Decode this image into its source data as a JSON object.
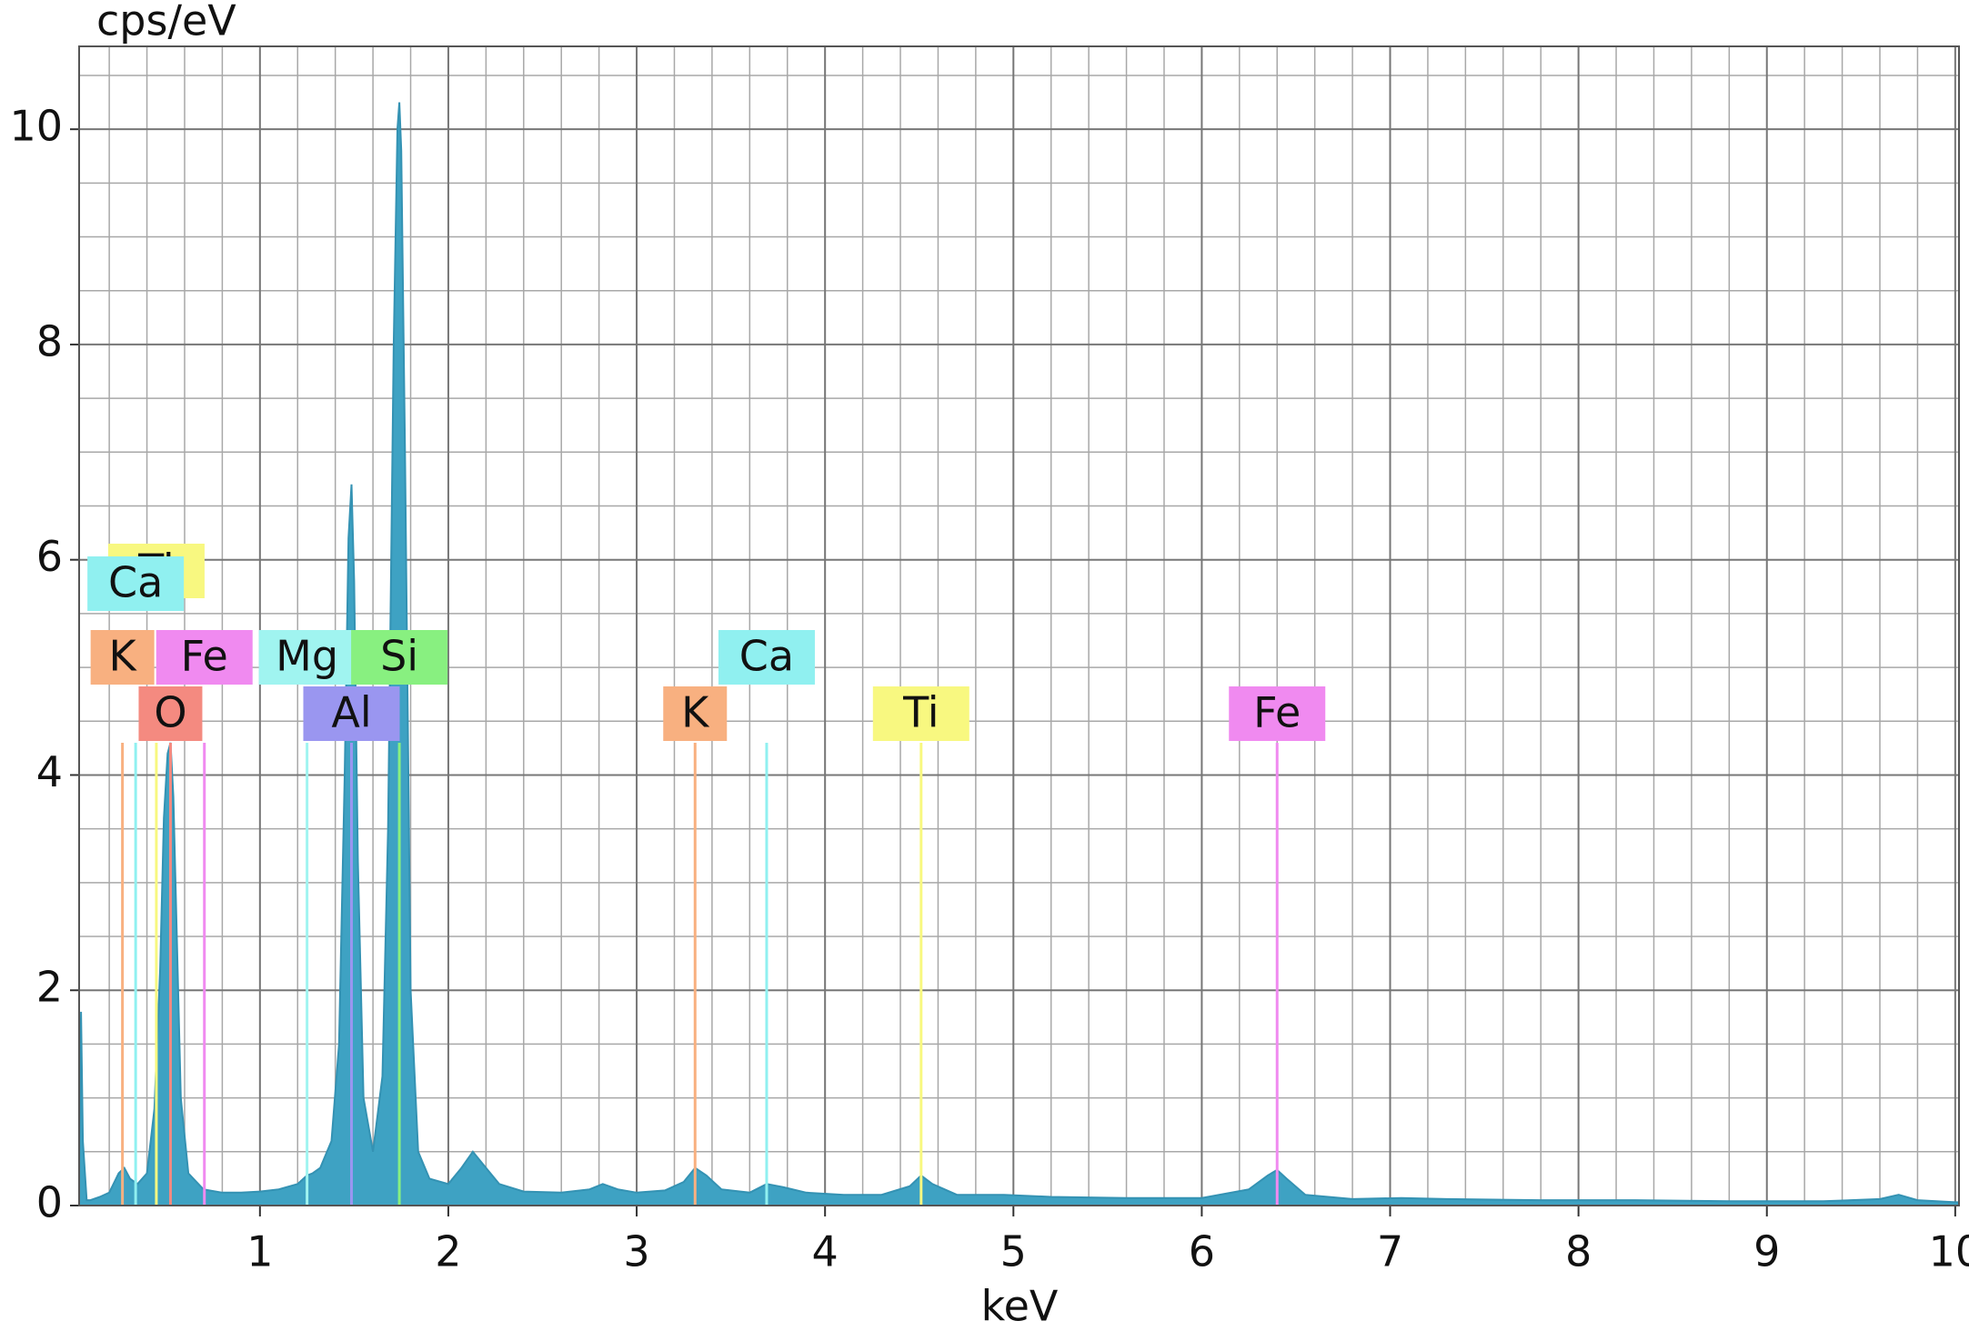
{
  "chart_data": {
    "type": "spectrum",
    "y_label": "cps/eV",
    "x_label": "keV",
    "xlim": [
      0.04,
      10.02
    ],
    "ylim": [
      0,
      10.77
    ],
    "xticks": [
      1,
      2,
      3,
      4,
      5,
      6,
      7,
      8,
      9,
      10
    ],
    "yticks": [
      0,
      2,
      4,
      6,
      8,
      10
    ],
    "grid": true,
    "x_minor_step": 0.2,
    "y_minor_step": 0.5,
    "color": "#3ea2c3",
    "x": [
      0.04,
      0.05,
      0.06,
      0.08,
      0.1,
      0.15,
      0.2,
      0.25,
      0.28,
      0.31,
      0.35,
      0.4,
      0.44,
      0.47,
      0.49,
      0.51,
      0.525,
      0.54,
      0.56,
      0.58,
      0.62,
      0.7,
      0.8,
      0.9,
      1.0,
      1.1,
      1.2,
      1.25,
      1.28,
      1.32,
      1.38,
      1.42,
      1.45,
      1.47,
      1.486,
      1.5,
      1.52,
      1.55,
      1.6,
      1.65,
      1.68,
      1.71,
      1.73,
      1.74,
      1.75,
      1.77,
      1.8,
      1.84,
      1.9,
      2.0,
      2.07,
      2.13,
      2.2,
      2.27,
      2.4,
      2.6,
      2.75,
      2.82,
      2.9,
      3.0,
      3.15,
      3.25,
      3.31,
      3.37,
      3.45,
      3.6,
      3.69,
      3.78,
      3.9,
      4.1,
      4.3,
      4.45,
      4.51,
      4.57,
      4.7,
      4.95,
      5.2,
      5.6,
      6.0,
      6.25,
      6.35,
      6.4,
      6.45,
      6.55,
      6.8,
      7.06,
      7.3,
      7.8,
      8.3,
      8.8,
      9.3,
      9.6,
      9.7,
      9.8,
      10.0,
      10.02
    ],
    "values": [
      0.3,
      1.8,
      0.6,
      0.05,
      0.05,
      0.08,
      0.12,
      0.3,
      0.35,
      0.25,
      0.2,
      0.3,
      0.9,
      2.2,
      3.6,
      4.2,
      4.3,
      3.8,
      2.4,
      1.0,
      0.3,
      0.15,
      0.12,
      0.12,
      0.13,
      0.15,
      0.2,
      0.28,
      0.3,
      0.35,
      0.6,
      1.5,
      4.0,
      6.2,
      6.7,
      5.8,
      3.2,
      1.0,
      0.5,
      1.2,
      3.5,
      8.0,
      10.0,
      10.25,
      9.8,
      7.0,
      2.0,
      0.5,
      0.25,
      0.2,
      0.35,
      0.5,
      0.35,
      0.2,
      0.13,
      0.12,
      0.15,
      0.2,
      0.15,
      0.12,
      0.14,
      0.22,
      0.35,
      0.28,
      0.15,
      0.12,
      0.2,
      0.17,
      0.12,
      0.1,
      0.1,
      0.18,
      0.28,
      0.2,
      0.1,
      0.1,
      0.08,
      0.07,
      0.07,
      0.15,
      0.28,
      0.33,
      0.25,
      0.1,
      0.06,
      0.07,
      0.06,
      0.05,
      0.05,
      0.04,
      0.04,
      0.06,
      0.1,
      0.05,
      0.03,
      0.03
    ],
    "marker_height": 4.3,
    "markers": [
      {
        "label": "K",
        "energy": 0.27,
        "color": "#f8b080"
      },
      {
        "label": "Ti",
        "energy": 0.45,
        "color": "#f8f880"
      },
      {
        "label": "Ca",
        "energy": 0.34,
        "color": "#90f0f0"
      },
      {
        "label": "O",
        "energy": 0.525,
        "color": "#f48a80"
      },
      {
        "label": "Fe",
        "energy": 0.705,
        "color": "#f08af0"
      },
      {
        "label": "Mg",
        "energy": 1.25,
        "color": "#a0f4f0"
      },
      {
        "label": "Al",
        "energy": 1.486,
        "color": "#9a96f0"
      },
      {
        "label": "Si",
        "energy": 1.74,
        "color": "#88f080"
      },
      {
        "label": "K",
        "energy": 3.31,
        "color": "#f8b080"
      },
      {
        "label": "Ca",
        "energy": 3.69,
        "color": "#90f0f0"
      },
      {
        "label": "Ti",
        "energy": 4.51,
        "color": "#f8f880"
      },
      {
        "label": "Fe",
        "energy": 6.4,
        "color": "#f08af0"
      }
    ]
  }
}
